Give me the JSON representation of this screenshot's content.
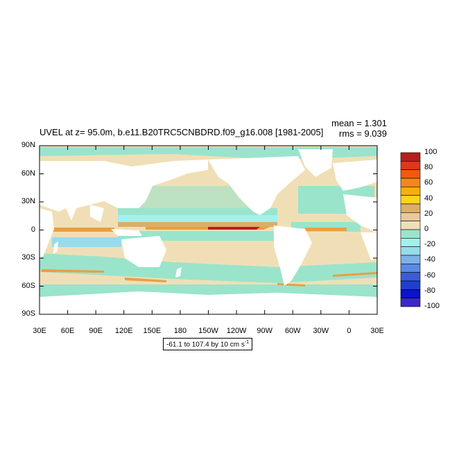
{
  "title": "UVEL at z=  95.0m, b.e11.B20TRC5CNBDRD.f09_g16.008 [1981-2005]",
  "stats": {
    "mean": "mean = 1.301",
    "rms": "rms = 9.039"
  },
  "range_label": "-61.1 to 107.4 by 10 cm s",
  "range_label_superscript": "-1",
  "axes": {
    "lat_ticks": [
      "90N",
      "60N",
      "30N",
      "0",
      "30S",
      "60S",
      "90S"
    ],
    "lon_ticks": [
      "30E",
      "60E",
      "90E",
      "120E",
      "150E",
      "180",
      "150W",
      "120W",
      "90W",
      "60W",
      "30W",
      "0",
      "30E"
    ]
  },
  "colorbar": {
    "labels": [
      "100",
      "80",
      "60",
      "40",
      "20",
      "0",
      "-20",
      "-40",
      "-60",
      "-80",
      "-100"
    ],
    "colors": [
      "#b4201e",
      "#dc3a18",
      "#f05a10",
      "#f7851b",
      "#fcad0c",
      "#fcd41c",
      "#dcae68",
      "#e8c89c",
      "#f0dfb6",
      "#9ae4cc",
      "#a4f0ec",
      "#96dcea",
      "#7cb2e6",
      "#5a8ae2",
      "#3a5cd8",
      "#1e40d0",
      "#0a14c4",
      "#3c28c8"
    ]
  }
}
